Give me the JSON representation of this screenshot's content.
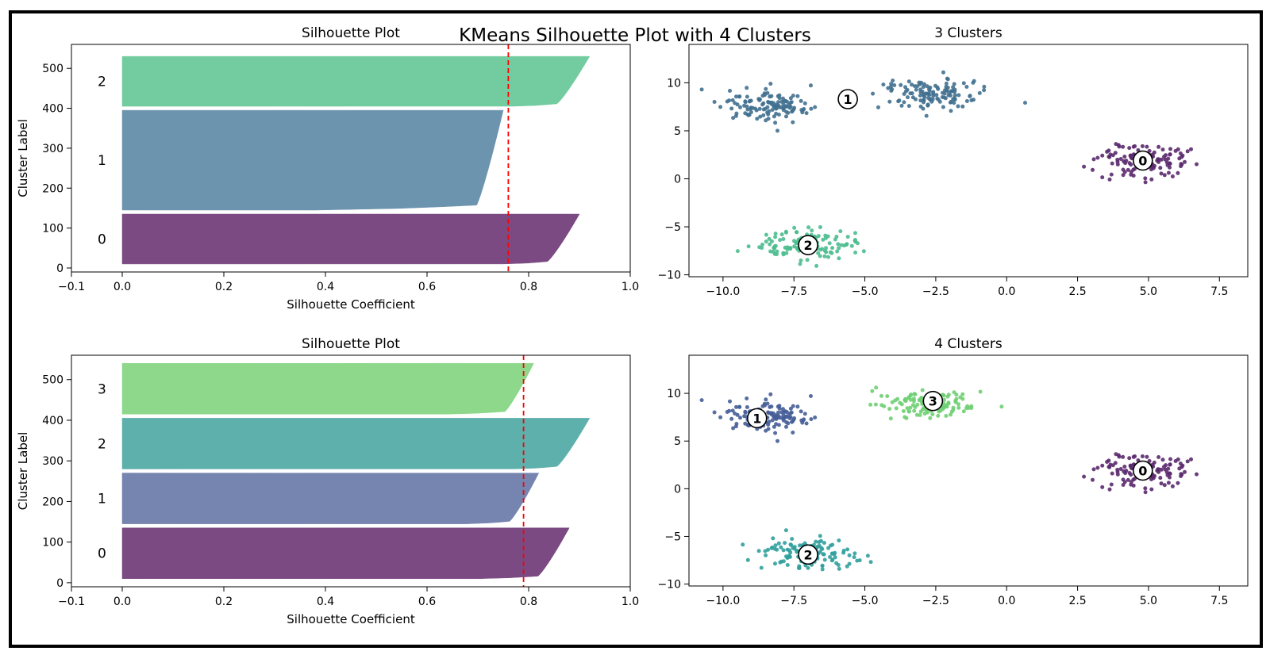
{
  "figure": {
    "suptitle": "KMeans Silhouette Plot with 4 Clusters",
    "frame_color": "#000000"
  },
  "chart_data": [
    {
      "id": "sil3",
      "type": "bar",
      "kind": "silhouette",
      "title": "Silhouette Plot",
      "xlabel": "Silhouette Coefficient",
      "ylabel": "Cluster Label",
      "xlim": [
        -0.1,
        1.0
      ],
      "ylim": [
        -10,
        560
      ],
      "xticks": [
        -0.1,
        0.0,
        0.2,
        0.4,
        0.6,
        0.8,
        1.0
      ],
      "xtick_labels": [
        "−0.1",
        "0.0",
        "0.2",
        "0.4",
        "0.6",
        "0.8",
        "1.0"
      ],
      "yticks": [
        0,
        100,
        200,
        300,
        400,
        500
      ],
      "ytick_labels": [
        "0",
        "100",
        "200",
        "300",
        "400",
        "500"
      ],
      "average_line": 0.76,
      "average_line_color": "#ff0000",
      "clusters": [
        {
          "label": "0",
          "y_start": 10,
          "y_end": 135,
          "max": 0.9,
          "tail": 0.75,
          "color": "#7b4a82"
        },
        {
          "label": "1",
          "y_start": 145,
          "y_end": 395,
          "max": 0.75,
          "tail": 0.38,
          "color": "#6c94ae"
        },
        {
          "label": "2",
          "y_start": 405,
          "y_end": 530,
          "max": 0.92,
          "tail": 0.77,
          "color": "#72cc9f"
        }
      ]
    },
    {
      "id": "scatter3",
      "type": "scatter",
      "title": "3 Clusters",
      "xlim": [
        -11.2,
        8.5
      ],
      "ylim": [
        -10.2,
        14.0
      ],
      "xticks": [
        -10.0,
        -7.5,
        -5.0,
        -2.5,
        0.0,
        2.5,
        5.0,
        7.5
      ],
      "xtick_labels": [
        "−10.0",
        "−7.5",
        "−5.0",
        "−2.5",
        "0.0",
        "2.5",
        "5.0",
        "7.5"
      ],
      "yticks": [
        -10,
        -5,
        0,
        5,
        10
      ],
      "ytick_labels": [
        "−10",
        "−5",
        "0",
        "5",
        "10"
      ],
      "groups": [
        {
          "label": "0",
          "center": [
            4.8,
            1.9
          ],
          "color": "#5b2a6e",
          "blobs": [
            {
              "cx": 4.8,
              "cy": 1.9,
              "sx": 0.85,
              "sy": 0.8,
              "n": 125
            }
          ]
        },
        {
          "label": "1",
          "center": [
            -5.6,
            8.3
          ],
          "color": "#41708f",
          "blobs": [
            {
              "cx": -8.6,
              "cy": 7.6,
              "sx": 0.85,
              "sy": 0.8,
              "n": 125
            },
            {
              "cx": -2.6,
              "cy": 8.9,
              "sx": 0.85,
              "sy": 0.8,
              "n": 125
            }
          ]
        },
        {
          "label": "2",
          "center": [
            -7.0,
            -6.9
          ],
          "color": "#4dbd8f",
          "blobs": [
            {
              "cx": -7.0,
              "cy": -6.8,
              "sx": 0.85,
              "sy": 0.8,
              "n": 125
            }
          ]
        }
      ]
    },
    {
      "id": "sil4",
      "type": "bar",
      "kind": "silhouette",
      "title": "Silhouette Plot",
      "xlabel": "Silhouette Coefficient",
      "ylabel": "Cluster Label",
      "xlim": [
        -0.1,
        1.0
      ],
      "ylim": [
        -10,
        560
      ],
      "xticks": [
        -0.1,
        0.0,
        0.2,
        0.4,
        0.6,
        0.8,
        1.0
      ],
      "xtick_labels": [
        "−0.1",
        "0.0",
        "0.2",
        "0.4",
        "0.6",
        "0.8",
        "1.0"
      ],
      "yticks": [
        0,
        100,
        200,
        300,
        400,
        500
      ],
      "ytick_labels": [
        "0",
        "100",
        "200",
        "300",
        "400",
        "500"
      ],
      "average_line": 0.79,
      "average_line_color": "#ff0000",
      "clusters": [
        {
          "label": "0",
          "y_start": 10,
          "y_end": 135,
          "max": 0.88,
          "tail": 0.7,
          "color": "#7b4a82"
        },
        {
          "label": "1",
          "y_start": 145,
          "y_end": 270,
          "max": 0.82,
          "tail": 0.68,
          "color": "#7585b0"
        },
        {
          "label": "2",
          "y_start": 280,
          "y_end": 405,
          "max": 0.92,
          "tail": 0.77,
          "color": "#5eb0ac"
        },
        {
          "label": "3",
          "y_start": 415,
          "y_end": 540,
          "max": 0.81,
          "tail": 0.64,
          "color": "#8dd88b"
        }
      ]
    },
    {
      "id": "scatter4",
      "type": "scatter",
      "title": "4 Clusters",
      "xlim": [
        -11.2,
        8.5
      ],
      "ylim": [
        -10.2,
        14.0
      ],
      "xticks": [
        -10.0,
        -7.5,
        -5.0,
        -2.5,
        0.0,
        2.5,
        5.0,
        7.5
      ],
      "xtick_labels": [
        "−10.0",
        "−7.5",
        "−5.0",
        "−2.5",
        "0.0",
        "2.5",
        "5.0",
        "7.5"
      ],
      "yticks": [
        -10,
        -5,
        0,
        5,
        10
      ],
      "ytick_labels": [
        "−10",
        "−5",
        "0",
        "5",
        "10"
      ],
      "groups": [
        {
          "label": "0",
          "center": [
            4.8,
            1.9
          ],
          "color": "#5b2a6e",
          "blobs": [
            {
              "cx": 4.8,
              "cy": 1.9,
              "sx": 0.85,
              "sy": 0.8,
              "n": 125
            }
          ]
        },
        {
          "label": "1",
          "center": [
            -8.8,
            7.4
          ],
          "color": "#465e97",
          "blobs": [
            {
              "cx": -8.6,
              "cy": 7.6,
              "sx": 0.85,
              "sy": 0.8,
              "n": 125
            }
          ]
        },
        {
          "label": "2",
          "center": [
            -7.0,
            -6.9
          ],
          "color": "#31a09d",
          "blobs": [
            {
              "cx": -7.0,
              "cy": -6.8,
              "sx": 0.85,
              "sy": 0.8,
              "n": 125
            }
          ]
        },
        {
          "label": "3",
          "center": [
            -2.6,
            9.2
          ],
          "color": "#6fcf73",
          "blobs": [
            {
              "cx": -2.6,
              "cy": 8.9,
              "sx": 0.85,
              "sy": 0.8,
              "n": 125
            }
          ]
        }
      ]
    }
  ]
}
